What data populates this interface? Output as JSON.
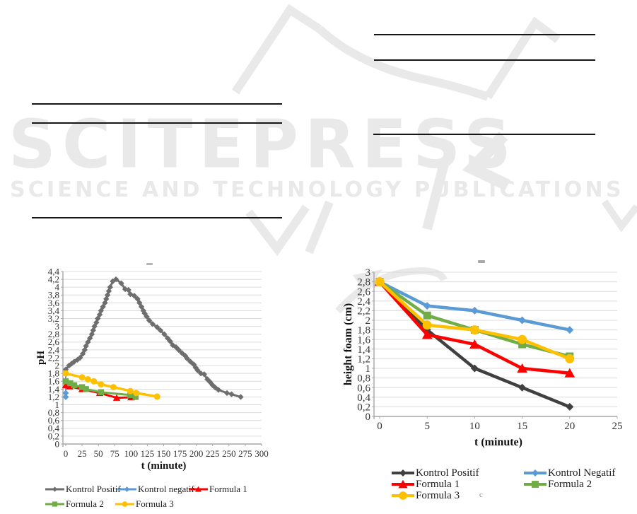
{
  "watermark": {
    "brand": "SCITEPRESS",
    "tagline": "SCIENCE AND TECHNOLOGY PUBLICATIONS",
    "color": "#e9e9e9"
  },
  "artifacts": {
    "legend_mark": "c"
  },
  "chart_data": [
    {
      "type": "line",
      "title": "",
      "xlabel": "t (minute)",
      "ylabel": "pH",
      "xlim": [
        0,
        300
      ],
      "ylim": [
        0,
        4.4
      ],
      "ytick_step": 0.2,
      "grid": true,
      "legend_position": "bottom",
      "xticks": [
        0,
        25,
        50,
        75,
        100,
        125,
        150,
        175,
        200,
        225,
        250,
        275,
        300
      ],
      "xtick_labels": [
        "0",
        "25",
        "50",
        "75",
        "100",
        "125",
        "150",
        "175",
        "200",
        "225",
        "250",
        "275",
        "300"
      ],
      "ytick_labels": [
        "4,4",
        "4,2",
        "4",
        "3,8",
        "3,6",
        "3,4",
        "3,2",
        "3",
        "2,8",
        "2,6",
        "2,4",
        "2,2",
        "2",
        "1,8",
        "1,6",
        "1,4",
        "1,2",
        "1",
        "0,8",
        "0,6",
        "0,4",
        "0,2",
        "0"
      ],
      "legend_rows": [
        [
          "Kontrol Positif",
          "Kontrol negatif",
          "Formula 1"
        ],
        [
          "Formula 2",
          "Formula 3"
        ]
      ],
      "series": [
        {
          "name": "Kontrol Positif",
          "color": "#6e6e6e",
          "marker": "diamond",
          "marker_size": 4.2,
          "line_width": 3,
          "points": [
            [
              0,
              1.9
            ],
            [
              5,
              2.0
            ],
            [
              9,
              2.05
            ],
            [
              13,
              2.1
            ],
            [
              18,
              2.15
            ],
            [
              22,
              2.2
            ],
            [
              26,
              2.3
            ],
            [
              29,
              2.4
            ],
            [
              31,
              2.5
            ],
            [
              34,
              2.6
            ],
            [
              37,
              2.7
            ],
            [
              40,
              2.8
            ],
            [
              42,
              2.9
            ],
            [
              44,
              3.0
            ],
            [
              47,
              3.1
            ],
            [
              49,
              3.2
            ],
            [
              52,
              3.3
            ],
            [
              54,
              3.4
            ],
            [
              57,
              3.5
            ],
            [
              60,
              3.6
            ],
            [
              62,
              3.7
            ],
            [
              64,
              3.8
            ],
            [
              66,
              3.9
            ],
            [
              68,
              4.0
            ],
            [
              72,
              4.15
            ],
            [
              77,
              4.2
            ],
            [
              85,
              4.1
            ],
            [
              91,
              3.95
            ],
            [
              96,
              3.93
            ],
            [
              99,
              3.82
            ],
            [
              105,
              3.78
            ],
            [
              110,
              3.7
            ],
            [
              113,
              3.6
            ],
            [
              116,
              3.5
            ],
            [
              119,
              3.4
            ],
            [
              121,
              3.33
            ],
            [
              124,
              3.25
            ],
            [
              128,
              3.15
            ],
            [
              133,
              3.06
            ],
            [
              140,
              2.98
            ],
            [
              145,
              2.9
            ],
            [
              151,
              2.8
            ],
            [
              156,
              2.7
            ],
            [
              160,
              2.62
            ],
            [
              164,
              2.52
            ],
            [
              169,
              2.47
            ],
            [
              173,
              2.4
            ],
            [
              178,
              2.32
            ],
            [
              183,
              2.25
            ],
            [
              186,
              2.18
            ],
            [
              191,
              2.1
            ],
            [
              196,
              2.03
            ],
            [
              199,
              1.95
            ],
            [
              202,
              1.88
            ],
            [
              207,
              1.8
            ],
            [
              212,
              1.78
            ],
            [
              217,
              1.65
            ],
            [
              221,
              1.58
            ],
            [
              225,
              1.5
            ],
            [
              229,
              1.44
            ],
            [
              234,
              1.38
            ],
            [
              247,
              1.3
            ],
            [
              254,
              1.27
            ],
            [
              268,
              1.2
            ]
          ]
        },
        {
          "name": "Kontrol negatif",
          "color": "#5b9bd5",
          "marker": "diamond",
          "marker_size": 4.5,
          "line_width": 2,
          "points": [
            [
              0,
              1.8
            ],
            [
              0,
              1.3
            ],
            [
              0,
              1.2
            ]
          ]
        },
        {
          "name": "Formula 1",
          "color": "#ff0000",
          "marker": "triangle",
          "marker_size": 5,
          "line_width": 3,
          "points": [
            [
              0,
              1.5
            ],
            [
              6,
              1.47
            ],
            [
              25,
              1.4
            ],
            [
              52,
              1.3
            ],
            [
              78,
              1.18
            ],
            [
              100,
              1.19
            ]
          ]
        },
        {
          "name": "Formula 2",
          "color": "#70ad47",
          "marker": "square",
          "marker_size": 4.2,
          "line_width": 3,
          "points": [
            [
              0,
              1.6
            ],
            [
              7,
              1.55
            ],
            [
              13,
              1.5
            ],
            [
              25,
              1.45
            ],
            [
              31,
              1.4
            ],
            [
              54,
              1.32
            ],
            [
              99,
              1.25
            ],
            [
              107,
              1.2
            ]
          ]
        },
        {
          "name": "Formula 3",
          "color": "#ffc000",
          "marker": "circle",
          "marker_size": 4.5,
          "line_width": 3.5,
          "points": [
            [
              0,
              1.8
            ],
            [
              25,
              1.7
            ],
            [
              34,
              1.65
            ],
            [
              43,
              1.6
            ],
            [
              54,
              1.52
            ],
            [
              73,
              1.45
            ],
            [
              99,
              1.35
            ],
            [
              108,
              1.3
            ],
            [
              140,
              1.21
            ]
          ]
        }
      ]
    },
    {
      "type": "line",
      "title": "",
      "xlabel": "t (minute)",
      "ylabel": "height foam (cm)",
      "xlim": [
        0,
        25
      ],
      "ylim": [
        0,
        3
      ],
      "ytick_step": 0.2,
      "grid": true,
      "legend_position": "bottom",
      "xticks": [
        0,
        5,
        10,
        15,
        20,
        25
      ],
      "xtick_labels": [
        "0",
        "5",
        "10",
        "15",
        "20",
        "25"
      ],
      "ytick_labels": [
        "3",
        "2,8",
        "2,6",
        "2,4",
        "2,2",
        "2",
        "1,8",
        "1,6",
        "1,4",
        "1,2",
        "1",
        "0,8",
        "0,6",
        "0,4",
        "0,2",
        "0"
      ],
      "legend_rows": [
        [
          "Kontrol Positif",
          "Kontrol Negatif"
        ],
        [
          "Formula 1",
          "Formula 2"
        ],
        [
          "Formula 3"
        ]
      ],
      "series": [
        {
          "name": "Kontrol Positif",
          "color": "#404040",
          "marker": "diamond",
          "marker_size": 5.5,
          "line_width": 4.5,
          "points": [
            [
              0,
              2.8
            ],
            [
              5,
              1.8
            ],
            [
              10,
              1.0
            ],
            [
              15,
              0.6
            ],
            [
              20,
              0.2
            ]
          ]
        },
        {
          "name": "Kontrol Negatif",
          "color": "#5b9bd5",
          "marker": "diamond",
          "marker_size": 5.5,
          "line_width": 4.5,
          "points": [
            [
              0,
              2.8
            ],
            [
              5,
              2.3
            ],
            [
              10,
              2.2
            ],
            [
              15,
              2.0
            ],
            [
              20,
              1.8
            ]
          ]
        },
        {
          "name": "Formula 1",
          "color": "#ff0000",
          "marker": "triangle",
          "marker_size": 7,
          "line_width": 4.5,
          "points": [
            [
              0,
              2.8
            ],
            [
              5,
              1.7
            ],
            [
              10,
              1.5
            ],
            [
              15,
              1.0
            ],
            [
              20,
              0.9
            ]
          ]
        },
        {
          "name": "Formula 2",
          "color": "#70ad47",
          "marker": "square",
          "marker_size": 5.5,
          "line_width": 4.5,
          "points": [
            [
              0,
              2.8
            ],
            [
              5,
              2.1
            ],
            [
              10,
              1.8
            ],
            [
              15,
              1.5
            ],
            [
              20,
              1.25
            ]
          ]
        },
        {
          "name": "Formula 3",
          "color": "#ffc000",
          "marker": "circle",
          "marker_size": 6.5,
          "line_width": 4.5,
          "points": [
            [
              0,
              2.8
            ],
            [
              5,
              1.9
            ],
            [
              10,
              1.8
            ],
            [
              15,
              1.6
            ],
            [
              20,
              1.2
            ]
          ]
        }
      ]
    }
  ]
}
